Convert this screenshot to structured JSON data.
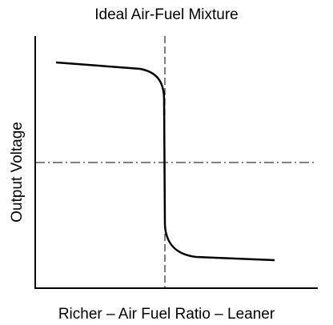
{
  "title": "Ideal Air-Fuel Mixture",
  "y_axis_label": "Output Voltage",
  "x_axis_label": "Richer – Air Fuel Ratio – Leaner"
}
